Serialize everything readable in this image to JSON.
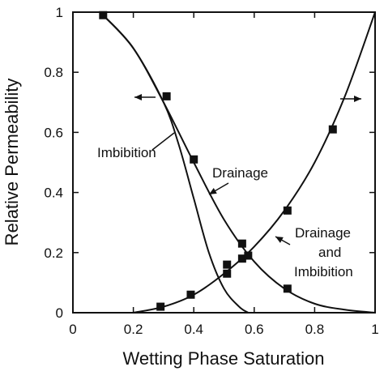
{
  "chart_data": {
    "type": "line",
    "xlabel": "Wetting Phase Saturation",
    "ylabel": "Relative Permeability",
    "xlim": [
      0,
      1
    ],
    "ylim": [
      0,
      1
    ],
    "xticks": [
      "0",
      "0.2",
      "0.4",
      "0.6",
      "0.8",
      "1"
    ],
    "yticks": [
      "0",
      "0.2",
      "0.4",
      "0.6",
      "0.8",
      "1"
    ],
    "grid": false,
    "series": [
      {
        "name": "Imbibition",
        "x": [
          0.1,
          0.2,
          0.3,
          0.35,
          0.4,
          0.45,
          0.5,
          0.55,
          0.58
        ],
        "y": [
          0.99,
          0.88,
          0.7,
          0.56,
          0.38,
          0.2,
          0.08,
          0.02,
          0.0
        ]
      },
      {
        "name": "Drainage",
        "x": [
          0.1,
          0.2,
          0.3,
          0.4,
          0.5,
          0.6,
          0.7,
          0.8,
          0.9,
          1.0
        ],
        "y": [
          0.99,
          0.88,
          0.7,
          0.5,
          0.31,
          0.17,
          0.08,
          0.03,
          0.01,
          0.0
        ]
      },
      {
        "name": "Drainage and Imbibition",
        "x": [
          0.2,
          0.3,
          0.4,
          0.5,
          0.6,
          0.7,
          0.8,
          0.9,
          1.0
        ],
        "y": [
          0.0,
          0.02,
          0.06,
          0.13,
          0.22,
          0.34,
          0.5,
          0.72,
          1.0
        ]
      }
    ],
    "markers": {
      "x": [
        0.1,
        0.31,
        0.4,
        0.51,
        0.51,
        0.56,
        0.56,
        0.58,
        0.71,
        0.86,
        0.29,
        0.39,
        0.71
      ],
      "y": [
        0.99,
        0.72,
        0.51,
        0.16,
        0.13,
        0.23,
        0.18,
        0.19,
        0.34,
        0.61,
        0.02,
        0.06,
        0.08
      ]
    },
    "annotations": {
      "imbibition": "Imbibition",
      "drainage": "Drainage",
      "drainage_and_imbibition_line1": "Drainage",
      "drainage_and_imbibition_line2": "and",
      "drainage_and_imbibition_line3": "Imbibition"
    },
    "colors": {
      "line": "#111111",
      "marker": "#111111",
      "background": "#ffffff"
    }
  }
}
